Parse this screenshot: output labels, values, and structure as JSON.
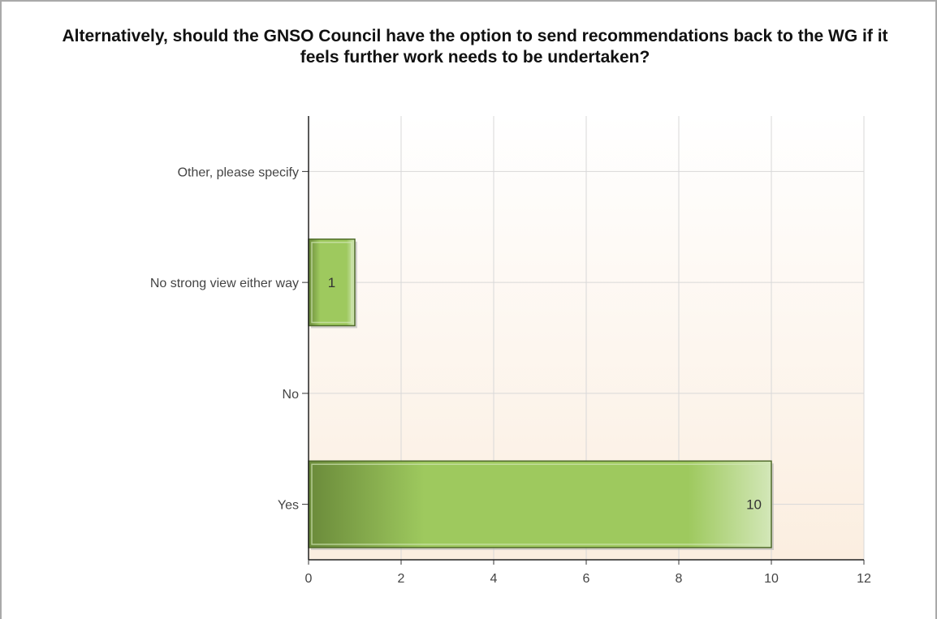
{
  "chart_data": {
    "type": "bar",
    "orientation": "horizontal",
    "title": "Alternatively, should the GNSO Council have the option to send recommendations back to the WG if it feels further work needs to be undertaken?",
    "categories": [
      "Other, please specify",
      "No strong view either way",
      "No",
      "Yes"
    ],
    "values": [
      0,
      1,
      0,
      10
    ],
    "data_labels": [
      "",
      "1",
      "",
      "10"
    ],
    "xlim": [
      0,
      12
    ],
    "x_ticks": [
      "0",
      "2",
      "4",
      "6",
      "8",
      "10",
      "12"
    ],
    "grid": true,
    "legend": "none",
    "colors": {
      "bar_dark": "#6a8a3a",
      "bar_mid": "#9ec95e",
      "bar_light": "#d3e7b8",
      "bar_border": "#4f6a2a",
      "plot_top": "#ffffff",
      "plot_bottom": "#fbeee0",
      "grid": "#d8d8d8"
    }
  }
}
